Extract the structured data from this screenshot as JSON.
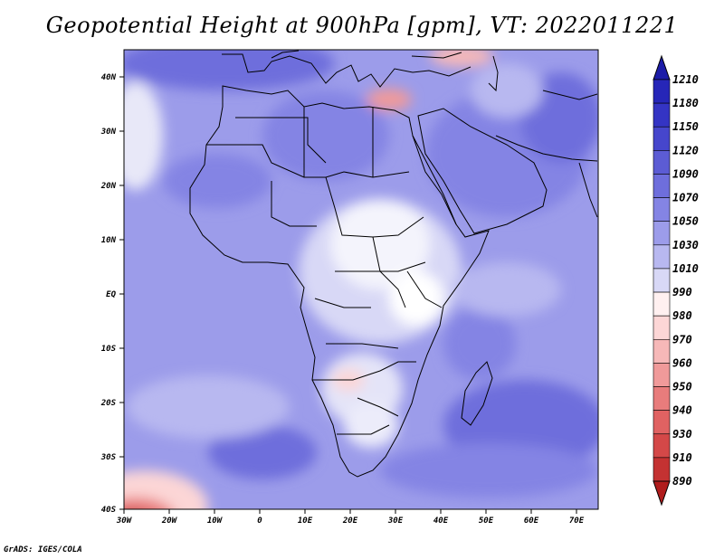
{
  "title": "Geopotential Height at 900hPa [gpm], VT: 2022011221",
  "credit": "GrADS: IGES/COLA",
  "map": {
    "projection": "latlon",
    "lon_range": [
      -30,
      75
    ],
    "lat_range": [
      -40,
      45
    ],
    "lon_ticks": [
      "30W",
      "20W",
      "10W",
      "0",
      "10E",
      "20E",
      "30E",
      "40E",
      "50E",
      "60E",
      "70E"
    ],
    "lat_ticks": [
      "40N",
      "30N",
      "20N",
      "10N",
      "EQ",
      "10S",
      "20S",
      "30S",
      "40S"
    ]
  },
  "colorbar": {
    "levels": [
      "1210",
      "1180",
      "1150",
      "1120",
      "1090",
      "1070",
      "1050",
      "1030",
      "1010",
      "990",
      "980",
      "970",
      "960",
      "950",
      "940",
      "930",
      "910",
      "890"
    ],
    "colors": [
      "#1c1ca8",
      "#2626b8",
      "#3434c4",
      "#4646cc",
      "#5c5cd4",
      "#6e6edc",
      "#8484e4",
      "#9c9cea",
      "#b8b8f0",
      "#d8d8f6",
      "#fff0f0",
      "#fcd6d6",
      "#f6b8b8",
      "#f09a9a",
      "#e87c7c",
      "#e06262",
      "#d44848",
      "#c43232",
      "#b01c1c"
    ]
  }
}
